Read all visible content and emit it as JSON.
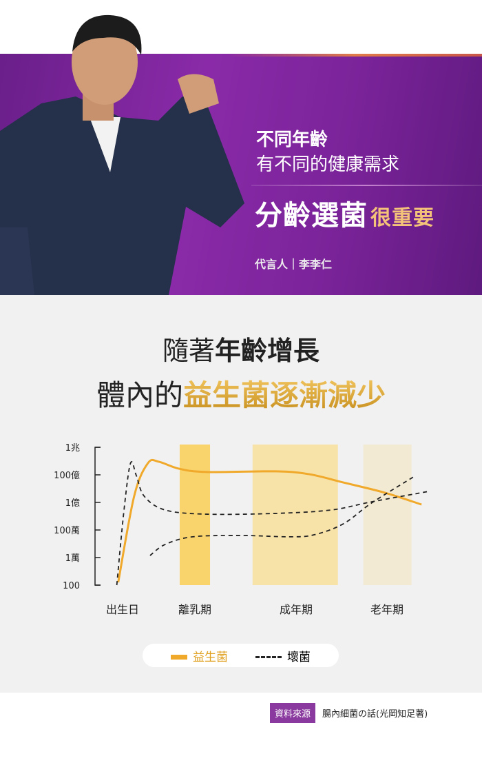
{
  "banner": {
    "line1": "不同年齡",
    "line2": "有不同的健康需求",
    "line3_main": "分齡選菌",
    "line3_accent": "很重要",
    "spokesperson": "代言人｜李李仁"
  },
  "headline": {
    "line1_a": "隨著",
    "line1_b": "年齡增長",
    "line2_a": "體內的",
    "line2_b": "益生菌逐漸減少"
  },
  "legend": {
    "good": "益生菌",
    "bad": "壞菌"
  },
  "source": {
    "badge": "資料來源",
    "text": "腸內細菌の話(光岡知足著)"
  },
  "colors": {
    "good": "#f0a92a",
    "bad": "#222222",
    "band1": "#f9d36b",
    "band2": "#f7e2a8",
    "band3": "#f3ead3",
    "purple": "#7a2399"
  },
  "chart_data": {
    "type": "line",
    "yscale": "log",
    "ylim": [
      100,
      1000000000000.0
    ],
    "grid": false,
    "legend": "bottom",
    "yticks": [
      {
        "v": 1000000000000.0,
        "label": "1兆"
      },
      {
        "v": 10000000000.0,
        "label": "100億"
      },
      {
        "v": 100000000.0,
        "label": "1億"
      },
      {
        "v": 1000000.0,
        "label": "100萬"
      },
      {
        "v": 10000.0,
        "label": "1萬"
      },
      {
        "v": 100,
        "label": "100"
      }
    ],
    "categories": [
      "出生日",
      "離乳期",
      "成年期",
      "老年期"
    ],
    "bands": [
      {
        "label": "離乳期",
        "from": 0.79,
        "to": 1.15
      },
      {
        "label": "成年期",
        "from": 1.57,
        "to": 2.46
      },
      {
        "label": "老年期",
        "from": 2.74,
        "to": 3.27
      }
    ],
    "series": [
      {
        "name": "益生菌",
        "style": "solid",
        "points": [
          [
            -0.06,
            160.0
          ],
          [
            0.16,
            280000000.0
          ],
          [
            0.35,
            70000000000.0
          ],
          [
            0.5,
            90000000000.0
          ],
          [
            0.78,
            28000000000.0
          ],
          [
            1.12,
            16000000000.0
          ],
          [
            1.8,
            18000000000.0
          ],
          [
            2.15,
            11000000000.0
          ],
          [
            2.52,
            2800000000.0
          ],
          [
            2.98,
            500000000.0
          ],
          [
            3.38,
            70000000.0
          ]
        ]
      },
      {
        "name": "壞菌",
        "style": "dashed",
        "points": [
          [
            -0.08,
            100.0
          ],
          [
            0.02,
            28000000.0
          ],
          [
            0.11,
            70000000000.0
          ],
          [
            0.19,
            9000000000.0
          ],
          [
            0.3,
            280000000.0
          ],
          [
            0.59,
            28000000.0
          ],
          [
            1.12,
            14000000.0
          ],
          [
            1.8,
            16000000.0
          ],
          [
            2.38,
            28000000.0
          ],
          [
            2.83,
            110000000.0
          ],
          [
            3.44,
            600000000.0
          ]
        ]
      },
      {
        "name": "壞菌",
        "style": "dashed",
        "points": [
          [
            0.38,
            14000.0
          ],
          [
            0.59,
            90000.0
          ],
          [
            0.97,
            320000.0
          ],
          [
            1.46,
            400000.0
          ],
          [
            1.94,
            320000.0
          ],
          [
            2.2,
            450000.0
          ],
          [
            2.52,
            2800000.0
          ],
          [
            2.83,
            90000000.0
          ],
          [
            3.29,
            7000000000.0
          ]
        ]
      }
    ]
  }
}
